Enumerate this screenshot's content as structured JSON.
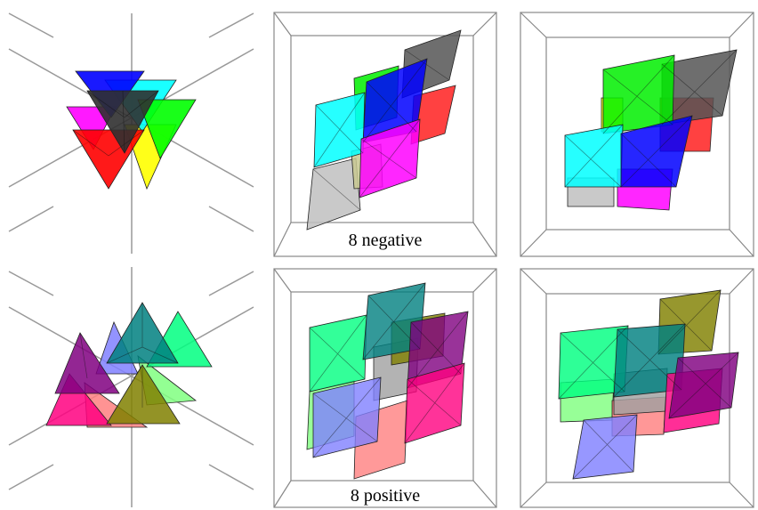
{
  "captions": {
    "negative": "8 negative",
    "positive": "8 positive"
  },
  "colors": {
    "negative_set": [
      "#0000ff",
      "#00ffff",
      "#ff00ff",
      "#00ff00",
      "#ff0000",
      "#ffff00",
      "#404040",
      "#c0c0c0"
    ],
    "positive_set": [
      "#008080",
      "#00ff80",
      "#800080",
      "#808000",
      "#8080ff",
      "#ff0080",
      "#ff8080",
      "#80ff80"
    ],
    "frame": "#888888"
  }
}
